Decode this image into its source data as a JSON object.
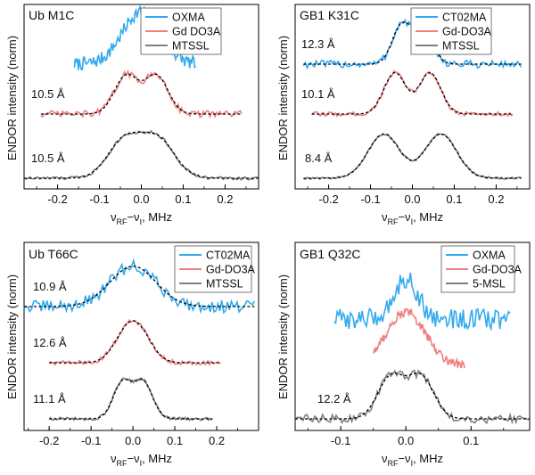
{
  "figure": {
    "ylabel": "ENDOR intensity (norm)",
    "xlabel_main": "ν",
    "xlabel_sub1": "RF",
    "xlabel_dash": "−ν",
    "xlabel_sub2": "I",
    "xlabel_unit": ", MHz"
  },
  "chart_data": [
    {
      "type": "line",
      "title": "Ub M1C",
      "xlim": [
        -0.28,
        0.28
      ],
      "xticks": [
        "-0.2",
        "-0.1",
        "0.0",
        "0.1",
        "0.2"
      ],
      "xtick_values": [
        -0.2,
        -0.1,
        0.0,
        0.1,
        0.2
      ],
      "colors": {
        "series0": "#33aaee",
        "series1": "#f08080",
        "series2": "#808080"
      },
      "series": [
        {
          "name": "OXMA",
          "xrange": [
            -0.16,
            0.13
          ],
          "offset": 2.05,
          "shape": "single",
          "width": 0.045,
          "amp": 0.95,
          "noise": 0.12,
          "distance": "",
          "fit": false
        },
        {
          "name": "Gd DO3A",
          "xrange": [
            -0.24,
            0.24
          ],
          "offset": 1.05,
          "shape": "double",
          "sep": 0.036,
          "width": 0.028,
          "amp": 0.72,
          "noise": 0.06,
          "distance": "10.5 Å",
          "fit": true
        },
        {
          "name": "MTSSL",
          "xrange": [
            -0.28,
            0.28
          ],
          "offset": 0.0,
          "shape": "double",
          "sep": 0.04,
          "width": 0.04,
          "amp": 0.78,
          "noise": 0.03,
          "distance": "10.5 Å",
          "fit": true
        }
      ]
    },
    {
      "type": "line",
      "title": "GB1 K31C",
      "xlim": [
        -0.28,
        0.28
      ],
      "xticks": [
        "-0.2",
        "-0.1",
        "0.0",
        "0.1",
        "0.2"
      ],
      "xtick_values": [
        -0.2,
        -0.1,
        0.0,
        0.1,
        0.2
      ],
      "colors": {
        "series0": "#33aaee",
        "series1": "#f08080",
        "series2": "#808080"
      },
      "series": [
        {
          "name": "CT02MA",
          "xrange": [
            -0.26,
            0.26
          ],
          "offset": 2.1,
          "shape": "double",
          "sep": 0.026,
          "width": 0.022,
          "amp": 0.75,
          "noise": 0.07,
          "distance": "12.3 Å",
          "fit": true
        },
        {
          "name": "Gd-DO3A",
          "xrange": [
            -0.24,
            0.24
          ],
          "offset": 1.05,
          "shape": "double",
          "sep": 0.042,
          "width": 0.026,
          "amp": 0.75,
          "noise": 0.04,
          "distance": "10.1 Å",
          "fit": true
        },
        {
          "name": "MTSSL",
          "xrange": [
            -0.26,
            0.26
          ],
          "offset": 0.0,
          "shape": "double",
          "sep": 0.068,
          "width": 0.038,
          "amp": 0.8,
          "noise": 0.02,
          "distance": "8.4 Å",
          "fit": true
        }
      ]
    },
    {
      "type": "line",
      "title": "Ub T66C",
      "xlim": [
        -0.26,
        0.3
      ],
      "xticks": [
        "-0.2",
        "-0.1",
        "0.0",
        "0.1",
        "0.2"
      ],
      "xtick_values": [
        -0.2,
        -0.1,
        0.0,
        0.1,
        0.2
      ],
      "colors": {
        "series0": "#33aaee",
        "series1": "#f08080",
        "series2": "#808080"
      },
      "series": [
        {
          "name": "CT02MA",
          "xrange": [
            -0.26,
            0.29
          ],
          "offset": 2.1,
          "shape": "single",
          "width": 0.055,
          "amp": 0.78,
          "noise": 0.12,
          "distance": "10.9 Å",
          "fit": true
        },
        {
          "name": "Gd-DO3A",
          "xrange": [
            -0.2,
            0.21
          ],
          "offset": 1.05,
          "shape": "double",
          "sep": 0.018,
          "width": 0.03,
          "amp": 0.72,
          "noise": 0.04,
          "distance": "12.6 Å",
          "fit": true
        },
        {
          "name": "MTSSL",
          "xrange": [
            -0.2,
            0.19
          ],
          "offset": 0.0,
          "shape": "double",
          "sep": 0.025,
          "width": 0.022,
          "amp": 0.75,
          "noise": 0.03,
          "distance": "11.1 Å",
          "fit": true
        }
      ]
    },
    {
      "type": "line",
      "title": "GB1 Q32C",
      "xlim": [
        -0.17,
        0.19
      ],
      "xticks": [
        "-0.1",
        "0.0",
        "0.1"
      ],
      "xtick_values": [
        -0.1,
        0.0,
        0.1
      ],
      "colors": {
        "series0": "#33aaee",
        "series1": "#f08080",
        "series2": "#808080"
      },
      "series": [
        {
          "name": "OXMA",
          "xrange": [
            -0.11,
            0.16
          ],
          "offset": 2.0,
          "shape": "single",
          "width": 0.018,
          "amp": 0.65,
          "noise": 0.16,
          "distance": "",
          "fit": false
        },
        {
          "name": "Gd-DO3A",
          "xrange": [
            -0.05,
            0.09
          ],
          "offset": 1.0,
          "shape": "single",
          "width": 0.03,
          "amp": 0.85,
          "noise": 0.07,
          "distance": "",
          "fit": false
        },
        {
          "name": "5-MSL",
          "xrange": [
            -0.17,
            0.19
          ],
          "offset": 0.0,
          "shape": "double",
          "sep": 0.023,
          "width": 0.02,
          "amp": 0.72,
          "noise": 0.07,
          "distance": "12.2 Å",
          "fit": true
        }
      ]
    }
  ]
}
